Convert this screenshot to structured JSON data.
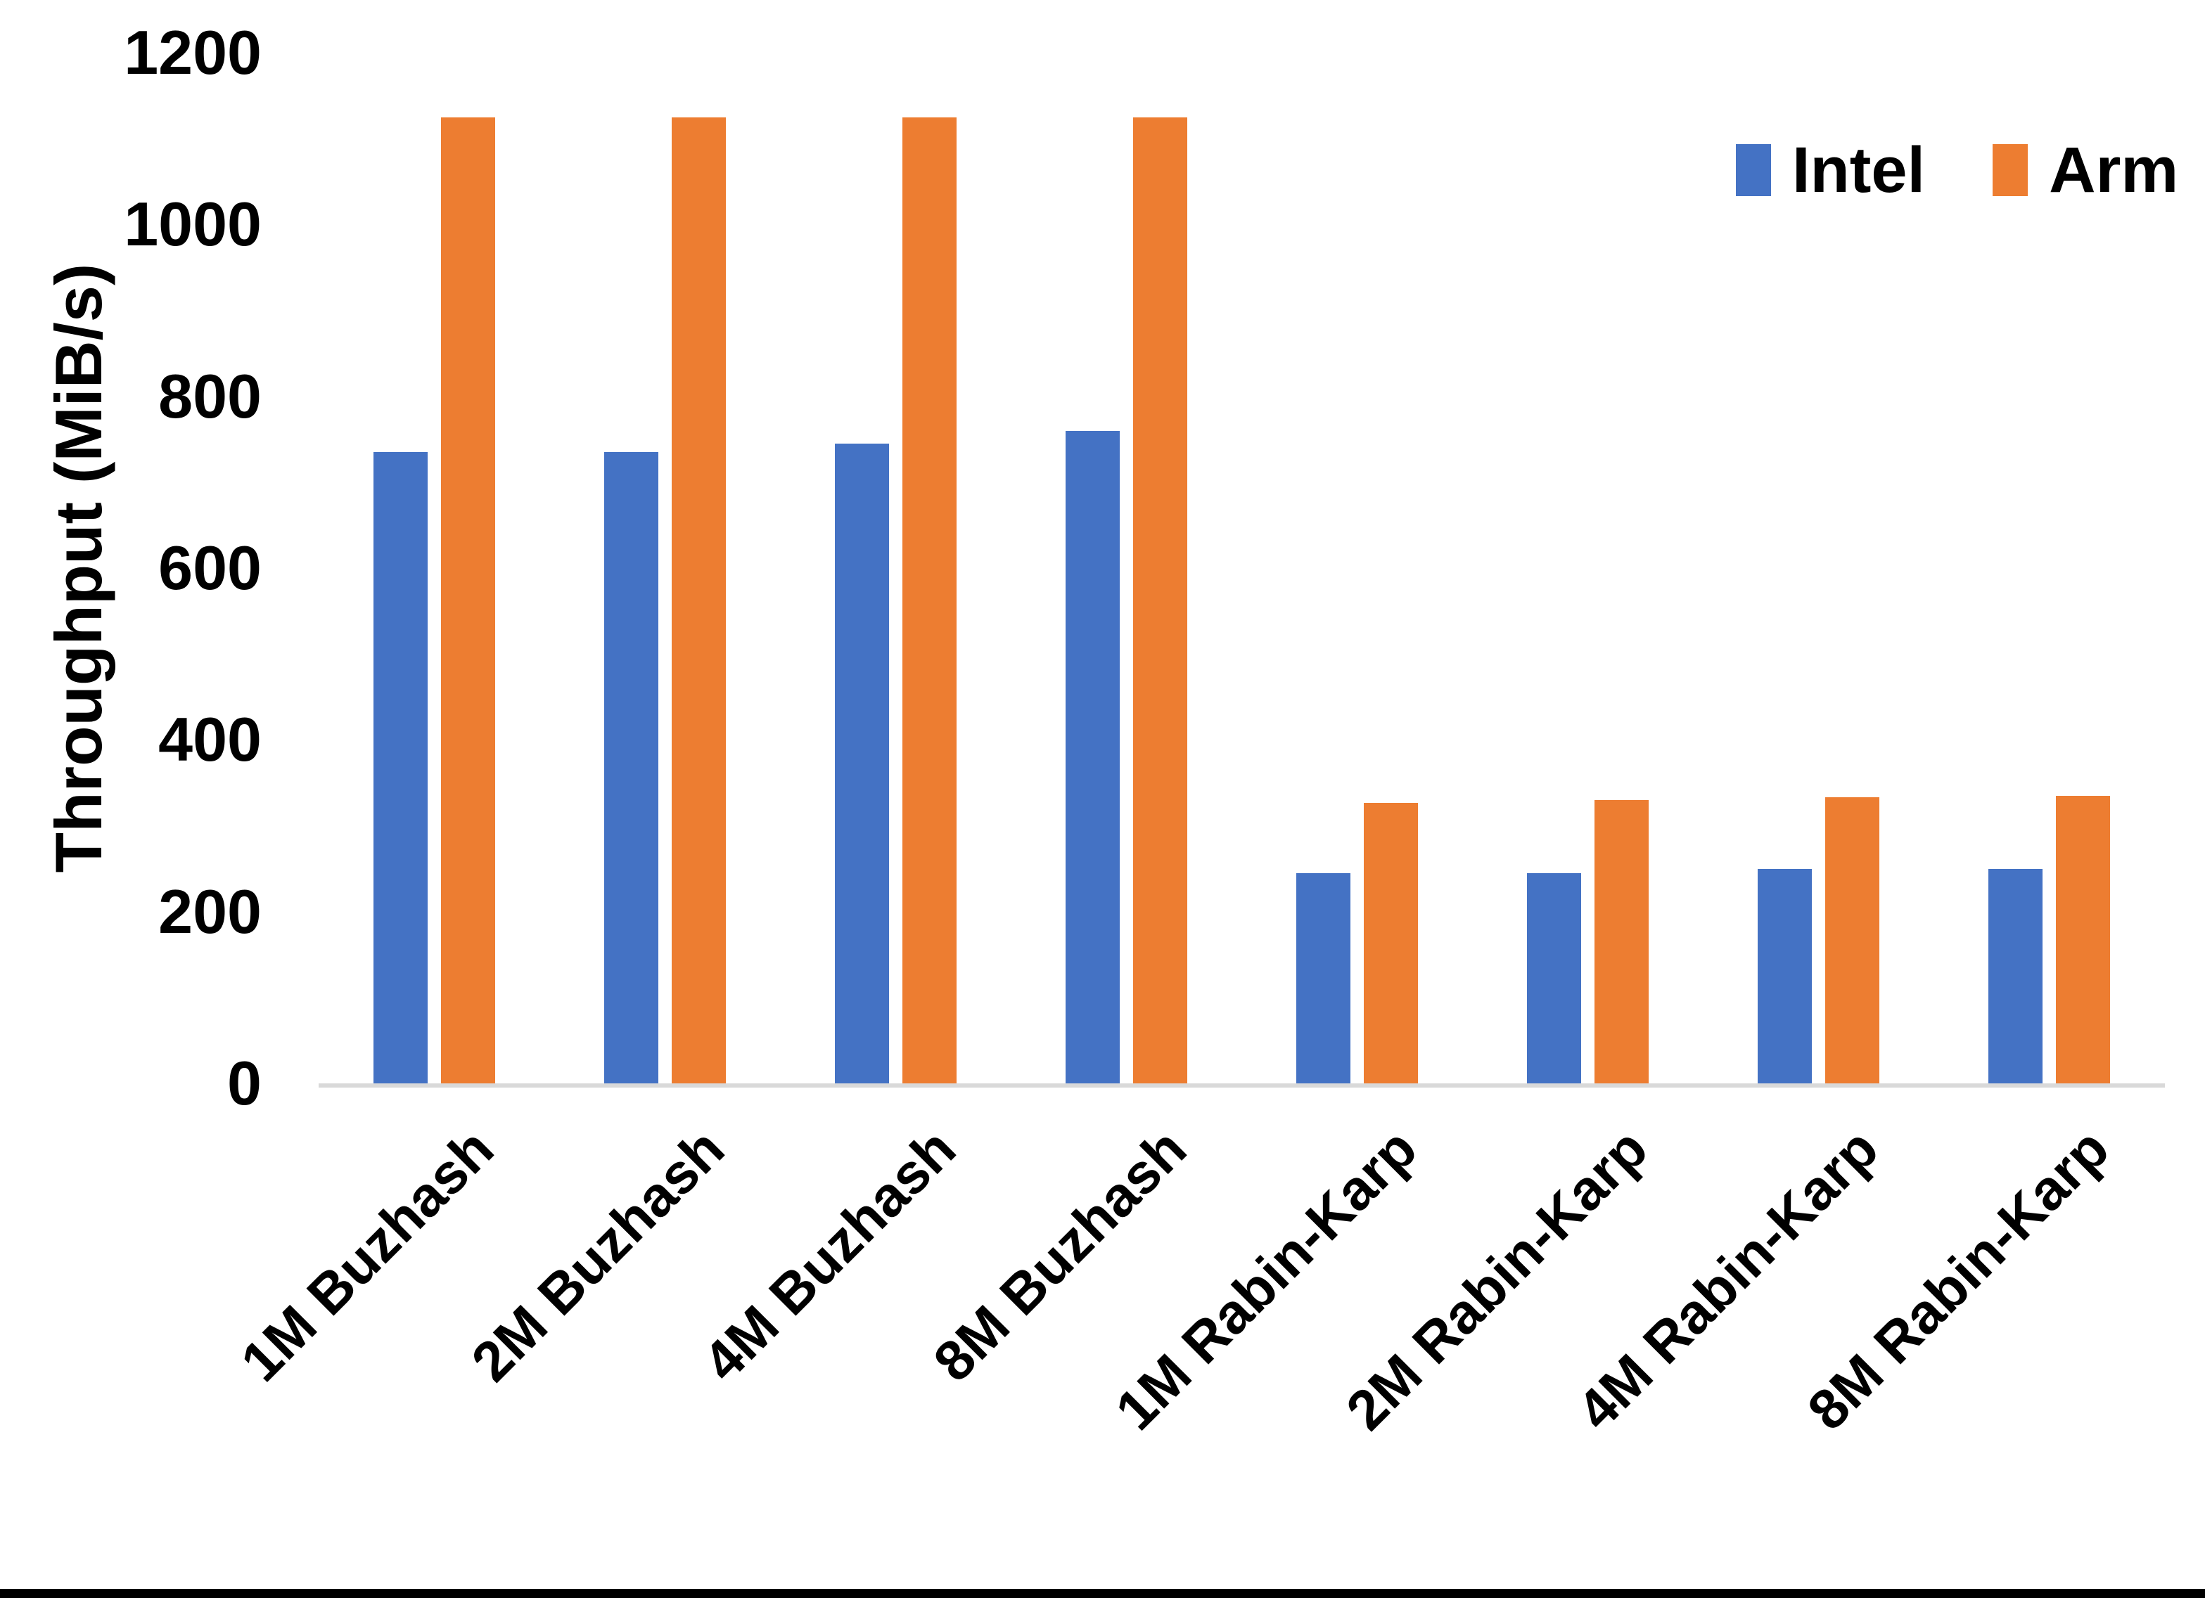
{
  "chart_data": {
    "type": "bar",
    "title": "",
    "xlabel": "",
    "ylabel": "Throughput (MiB/s)",
    "categories": [
      "1M Buzhash",
      "2M Buzhash",
      "4M Buzhash",
      "8M Buzhash",
      "1M Rabin-Karp",
      "2M Rabin-Karp",
      "4M Rabin-Karp",
      "8M Rabin-Karp"
    ],
    "series": [
      {
        "name": "Intel",
        "color": "#4472C4",
        "values": [
          735,
          735,
          745,
          760,
          245,
          245,
          250,
          250
        ]
      },
      {
        "name": "Arm",
        "color": "#ED7D31",
        "values": [
          1125,
          1125,
          1125,
          1125,
          327,
          330,
          333,
          335
        ]
      }
    ],
    "ylim": [
      0,
      1200
    ],
    "yticks": [
      0,
      200,
      400,
      600,
      800,
      1000,
      1200
    ],
    "grid": false,
    "legend_position": "top-right",
    "axis_line_color": "#D9D9D9"
  },
  "legend": {
    "intel_label": "Intel",
    "arm_label": "Arm"
  },
  "axes": {
    "y_title": "Throughput (MiB/s)"
  }
}
